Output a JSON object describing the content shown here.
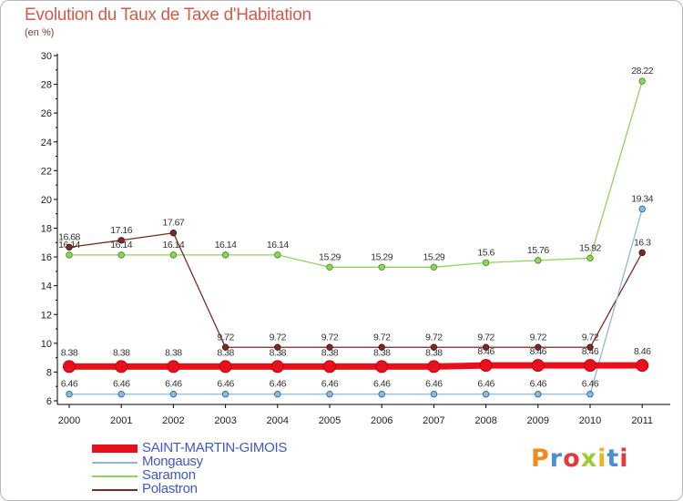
{
  "header": {
    "title": "Evolution du Taux de Taxe d'Habitation",
    "subtitle": "(en %)"
  },
  "colors": {
    "axis": "#000000",
    "tick_label": "#222222",
    "data_label": "#333333",
    "grid": "#dddddd"
  },
  "logo": {
    "text": "Proxiti",
    "letter_colors": [
      "#f08a1a",
      "#4a8fd4",
      "#e23b3b",
      "#9acd32",
      "#f0b41a",
      "#4a8fd4",
      "#e23b3b"
    ]
  },
  "chart_data": {
    "type": "line",
    "title": "Evolution du Taux de Taxe d'Habitation",
    "subtitle": "(en %)",
    "xlabel": "",
    "ylabel": "",
    "x": [
      "2000",
      "2001",
      "2002",
      "2003",
      "2004",
      "2005",
      "2006",
      "2007",
      "2008",
      "2009",
      "2010",
      "2011"
    ],
    "ylim": [
      6,
      30
    ],
    "yticks": [
      6,
      8,
      10,
      12,
      14,
      16,
      18,
      20,
      22,
      24,
      26,
      28,
      30
    ],
    "legend_position": "bottom-left",
    "series": [
      {
        "name": "Saramon",
        "color": "#8ed45a",
        "stroke": "#3f8f1a",
        "values": [
          16.14,
          16.14,
          16.14,
          16.14,
          16.14,
          15.29,
          15.29,
          15.29,
          15.6,
          15.76,
          15.92,
          28.22
        ],
        "labels": [
          "16.14",
          "16.14",
          "16.14",
          "16.14",
          "16.14",
          "15.29",
          "15.29",
          "15.29",
          "15.6",
          "15.76",
          "15.92",
          "28.22"
        ]
      },
      {
        "name": "Polastron",
        "color": "#7a2a24",
        "stroke": "#4a1410",
        "values": [
          16.68,
          17.16,
          17.67,
          9.72,
          9.72,
          9.72,
          9.72,
          9.72,
          9.72,
          9.72,
          9.72,
          16.3
        ],
        "labels": [
          "16.68",
          "17.16",
          "17.67",
          "9.72",
          "9.72",
          "9.72",
          "9.72",
          "9.72",
          "9.72",
          "9.72",
          "9.72",
          "16.3"
        ]
      },
      {
        "name": "Mongausy",
        "color": "#8fb8d8",
        "stroke": "#1f5fa0",
        "values": [
          6.46,
          6.46,
          6.46,
          6.46,
          6.46,
          6.46,
          6.46,
          6.46,
          6.46,
          6.46,
          6.46,
          19.34
        ],
        "labels": [
          "6.46",
          "6.46",
          "6.46",
          "6.46",
          "6.46",
          "6.46",
          "6.46",
          "6.46",
          "6.46",
          "6.46",
          "6.46",
          "19.34"
        ]
      },
      {
        "name": "SAINT-MARTIN-GIMOIS",
        "color": "#e8101a",
        "stroke": "#c00010",
        "values": [
          8.38,
          8.38,
          8.38,
          8.38,
          8.38,
          8.38,
          8.38,
          8.38,
          8.46,
          8.46,
          8.46,
          8.46
        ],
        "labels": [
          "8.38",
          "8.38",
          "8.38",
          "8.38",
          "8.38",
          "8.38",
          "8.38",
          "8.38",
          "8.46",
          "8.46",
          "8.46",
          "8.46"
        ]
      }
    ],
    "legend": [
      "SAINT-MARTIN-GIMOIS",
      "Mongausy",
      "Saramon",
      "Polastron"
    ]
  }
}
